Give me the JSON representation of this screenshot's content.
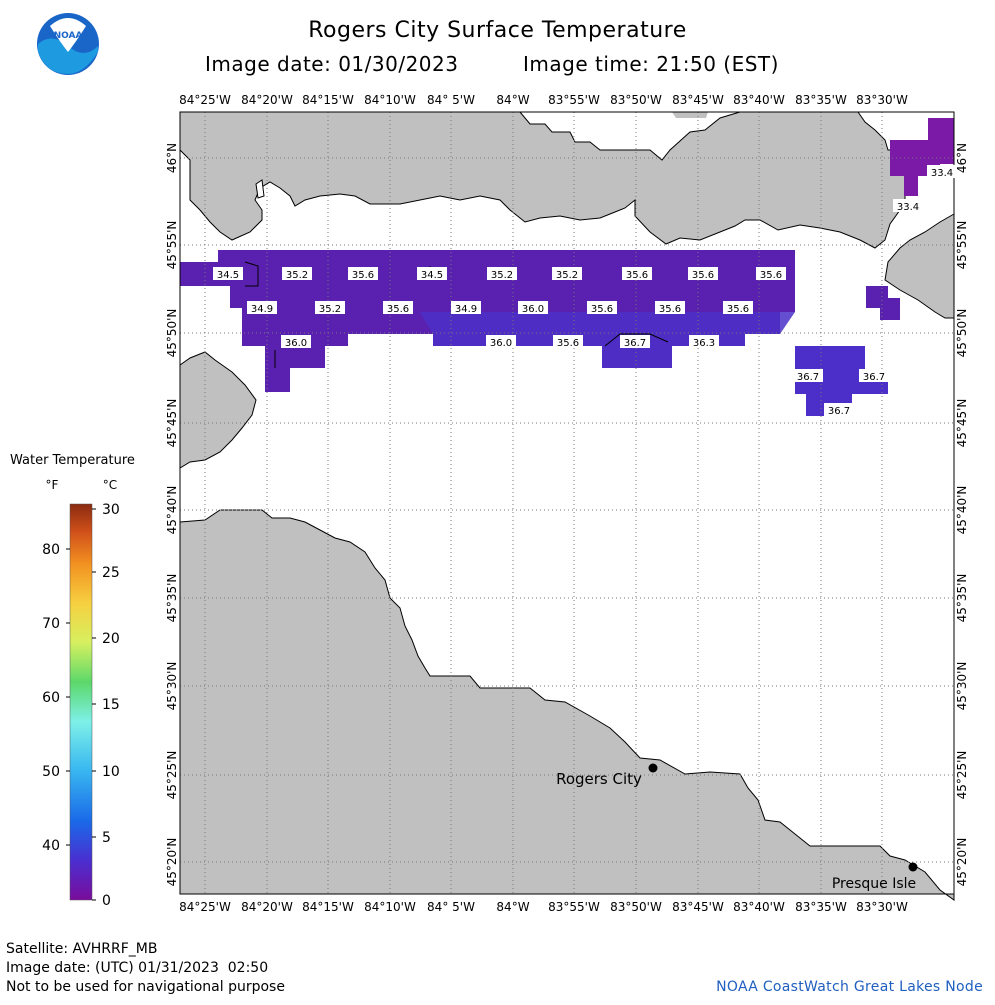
{
  "header": {
    "title": "Rogers City Surface Temperature",
    "image_date": "Image date: 01/30/2023",
    "image_time": "Image time: 21:50 (EST)",
    "logo_text": "NOAA"
  },
  "map": {
    "lon_labels": [
      "84°25'W",
      "84°20'W",
      "84°15'W",
      "84°10'W",
      "84° 5'W",
      "84°W",
      "83°55'W",
      "83°50'W",
      "83°45'W",
      "83°40'W",
      "83°35'W",
      "83°30'W"
    ],
    "lat_labels": [
      "46°N",
      "45°55'N",
      "45°50'N",
      "45°45'N",
      "45°40'N",
      "45°35'N",
      "45°30'N",
      "45°25'N",
      "45°20'N"
    ],
    "temp_labels": [
      "34.5",
      "35.2",
      "35.6",
      "34.5",
      "35.2",
      "35.2",
      "35.6",
      "35.6",
      "35.6",
      "34.9",
      "35.2",
      "35.6",
      "34.9",
      "36.0",
      "35.6",
      "35.6",
      "35.6",
      "36.0",
      "36.0",
      "35.6",
      "36.7",
      "36.3",
      "36.7",
      "36.7",
      "36.7",
      "33.4",
      "33.4"
    ],
    "places": [
      {
        "name": "Rogers City"
      },
      {
        "name": "Presque Isle"
      }
    ],
    "colors": {
      "land": "#c0c0c0",
      "water": "#ffffff",
      "temp_34": "#5a21b0",
      "temp_36": "#4b2fc8",
      "temp_33": "#7a1aa6"
    }
  },
  "legend": {
    "title": "Water Temperature",
    "unit_f": "°F",
    "unit_c": "°C",
    "f_ticks": [
      "80",
      "70",
      "60",
      "50",
      "40"
    ],
    "c_ticks": [
      "30",
      "25",
      "20",
      "15",
      "10",
      "5",
      "0"
    ]
  },
  "footer": {
    "satellite": "Satellite: AVHRRF_MB",
    "utc_date": "Image date: (UTC) 01/31/2023  02:50",
    "disclaimer": "Not to be used for navigational purpose",
    "credit": "NOAA CoastWatch Great Lakes Node"
  }
}
